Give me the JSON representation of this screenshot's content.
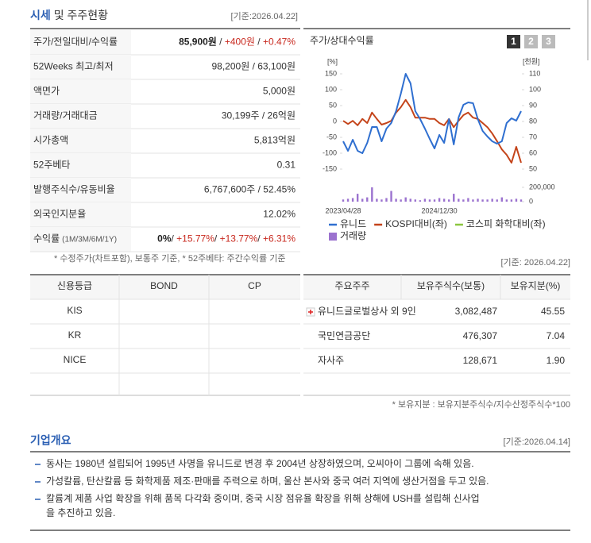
{
  "header": {
    "title_main": "시세",
    "title_rest": "및 주주현황",
    "date": "[기준:2026.04.22]"
  },
  "price_table": {
    "rows": [
      {
        "label": "주가/전일대비/수익률",
        "value": [
          "85,900원",
          " / ",
          "+400원",
          " / ",
          "+0.47%"
        ]
      },
      {
        "label": "52Weeks 최고/최저",
        "value": [
          "98,200원 / 63,100원"
        ]
      },
      {
        "label": "액면가",
        "value": [
          "5,000원"
        ]
      },
      {
        "label": "거래량/거래대금",
        "value": [
          "30,199주 / 26억원"
        ]
      },
      {
        "label": "시가총액",
        "value": [
          "5,813억원"
        ]
      },
      {
        "label": "52주베타",
        "value": [
          "0.31"
        ]
      },
      {
        "label": "발행주식수/유동비율",
        "value": [
          "6,767,600주 / 52.45%"
        ]
      },
      {
        "label": "외국인지분율",
        "value": [
          "12.02%"
        ]
      },
      {
        "label": "수익률",
        "label_sub": "(1M/3M/6M/1Y)",
        "value": [
          "0%",
          "/ ",
          "+15.77%",
          "/ ",
          "+13.77%",
          "/ ",
          "+6.31%"
        ]
      }
    ],
    "note": "* 수정주가(차트포함), 보통주 기준, * 52주베타: 주간수익률 기준"
  },
  "chart_data": {
    "type": "line",
    "title": "주가/상대수익률",
    "buttons": [
      "1",
      "2",
      "3"
    ],
    "ylabel": "[%]",
    "y2label": "[천원]",
    "ylim": [
      -150,
      150
    ],
    "yticks": [
      150,
      100,
      50,
      0,
      -50,
      -100,
      -150
    ],
    "y2lim": [
      50,
      110
    ],
    "y2ticks": [
      110,
      100,
      90,
      80,
      70,
      60,
      50
    ],
    "categories": [
      "2023/04/28",
      null,
      null,
      null,
      null,
      null,
      null,
      null,
      null,
      null,
      null,
      null,
      null,
      null,
      null,
      null,
      null,
      null,
      null,
      null,
      "2024/12/30",
      null,
      null,
      null,
      null,
      null,
      null,
      null,
      null,
      null,
      null,
      null,
      null,
      null,
      null,
      null,
      null,
      null
    ],
    "series": [
      {
        "name": "유니드",
        "color": "#2f6fd0",
        "axis": "y2",
        "values": [
          67.5,
          61.5,
          68.5,
          61.5,
          60,
          66.5,
          76.5,
          76.5,
          67.5,
          75.5,
          79,
          86.5,
          97.5,
          110,
          104,
          86.5,
          81.5,
          75.5,
          69,
          63,
          71.5,
          66.5,
          81.5,
          65.5,
          82.5,
          90.5,
          92,
          91.5,
          81.5,
          74,
          70.5,
          67.5,
          66,
          67.5,
          79,
          82,
          80.5,
          86.5
        ]
      },
      {
        "name": "KOSPI대비(좌)",
        "color": "#c4441a",
        "values": [
          2,
          -8,
          2,
          -12,
          8,
          -5,
          28,
          8,
          -10,
          -5,
          2,
          28,
          45,
          68,
          45,
          12,
          12,
          12,
          8,
          8,
          -5,
          -12,
          8,
          -18,
          2,
          20,
          28,
          12,
          8,
          -5,
          -18,
          -38,
          -62,
          -88,
          -105,
          -130,
          -80,
          -130
        ]
      },
      {
        "name": "코스피 화학대비(좌)",
        "color": "#8cc63f"
      }
    ],
    "volume": {
      "name": "거래량",
      "color": "#9b72cf",
      "ylim": [
        0,
        200000
      ],
      "yticks": [
        {
          "value": 200000,
          "label": "200,000"
        },
        0
      ],
      "values": [
        30000,
        40000,
        50000,
        110000,
        40000,
        60000,
        200000,
        40000,
        30000,
        50000,
        150000,
        40000,
        30000,
        60000,
        40000,
        30000,
        20000,
        40000,
        30000,
        30000,
        50000,
        40000,
        30000,
        110000,
        40000,
        30000,
        50000,
        30000,
        40000,
        30000,
        30000,
        40000,
        30000,
        60000,
        30000,
        30000,
        40000,
        30000
      ]
    }
  },
  "credit": {
    "headers": [
      "신용등급",
      "BOND",
      "CP"
    ],
    "rows": [
      [
        "KIS"
      ],
      [
        "KR"
      ],
      [
        "NICE"
      ]
    ]
  },
  "shareholders": {
    "date": "[기준: 2026.04.22]",
    "headers": [
      "주요주주",
      "보유주식수(보통)",
      "보유지분(%)"
    ],
    "rows": [
      [
        "유니드글로벌상사 외 9인",
        "3,082,487",
        "45.55"
      ],
      [
        "국민연금공단",
        "476,307",
        "7.04"
      ],
      [
        "자사주",
        "128,671",
        "1.90"
      ]
    ],
    "note": "* 보유지분 : 보유지분주식수/지수산정주식수*100"
  },
  "overview": {
    "title": "기업개요",
    "date": "[기준:2026.04.14]",
    "items": [
      [
        "동사는 1980년 설립되어 1995년 사명을 유니드로 변경 후 2004년 상장하였으며, 오씨아이 그룹에 속해 있음."
      ],
      [
        "가성칼륨, 탄산칼륨 등 화학제품 제조·판매를 주력으로 하며, 울산 본사와 중국 여러 지역에 생산거점을 두고 있음."
      ],
      [
        "칼륨계 제품 사업 확장을 위해 품목 다각화 중이며, 중국 시장 점유율 확장을 위해 상해에 USH를 설립해 신사업",
        "을 추진하고 있음."
      ]
    ]
  }
}
